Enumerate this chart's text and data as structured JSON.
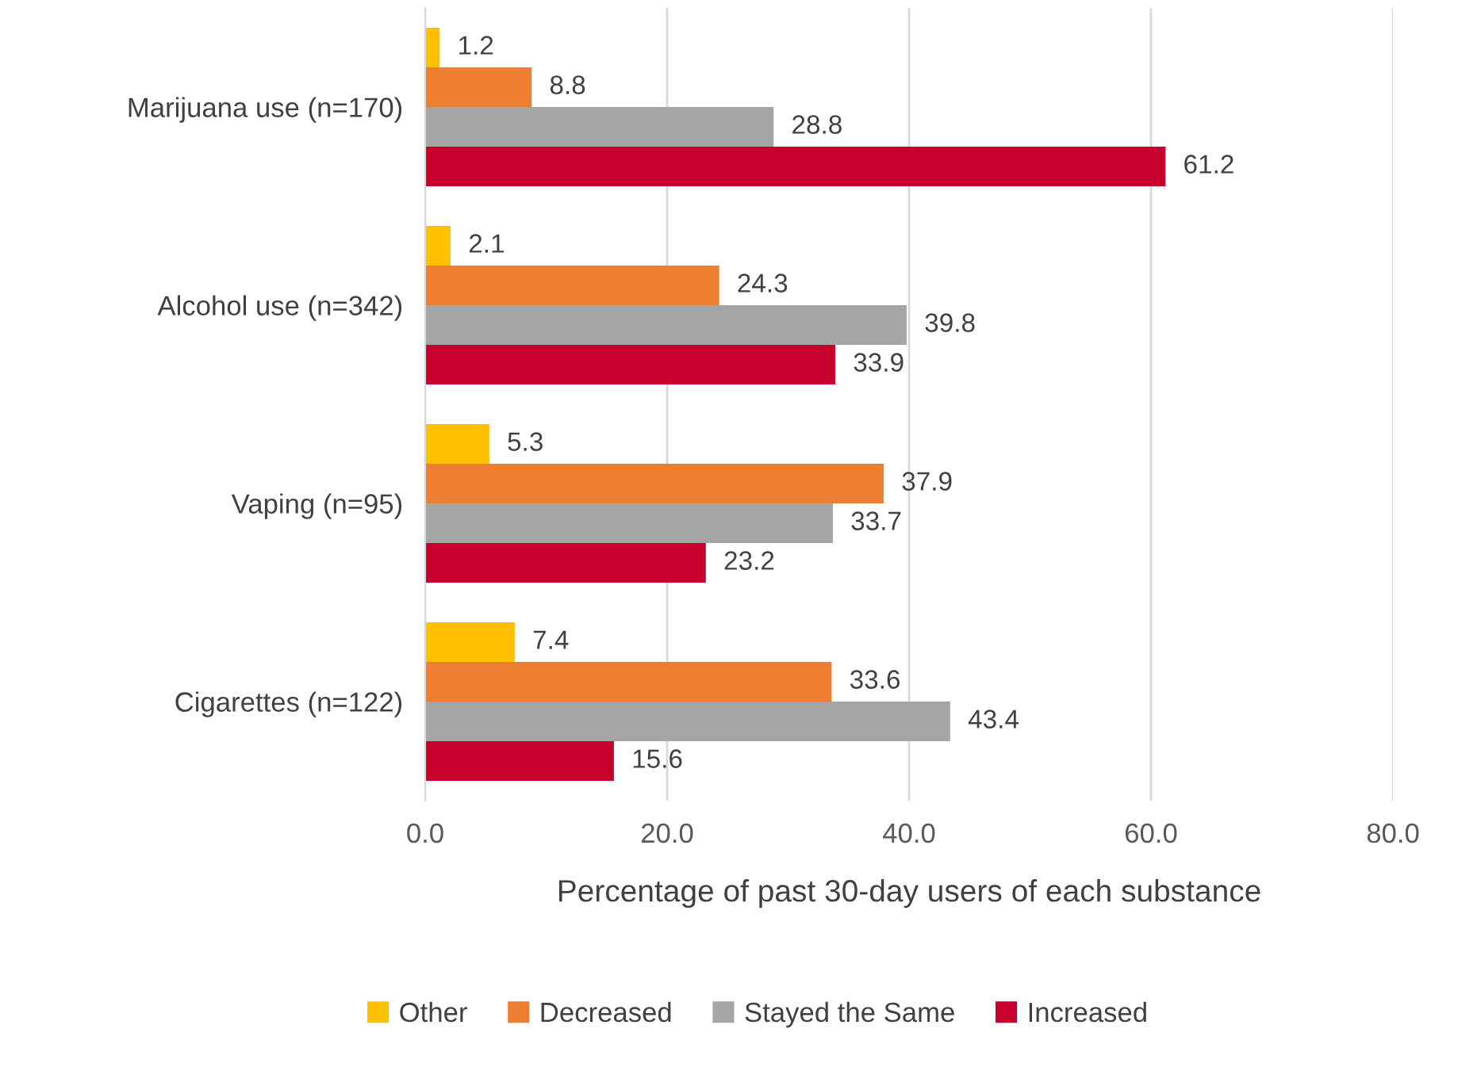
{
  "chart_data": {
    "type": "bar",
    "orientation": "horizontal",
    "xlabel": "Percentage of past 30-day users of each substance",
    "categories": [
      "Marijuana use (n=170)",
      "Alcohol use (n=342)",
      "Vaping (n=95)",
      "Cigarettes (n=122)"
    ],
    "series": [
      {
        "name": "Other",
        "color": "#ffc000",
        "values": [
          1.2,
          2.1,
          5.3,
          7.4
        ]
      },
      {
        "name": "Decreased",
        "color": "#ed7d31",
        "values": [
          8.8,
          24.3,
          37.9,
          33.6
        ]
      },
      {
        "name": "Stayed the Same",
        "color": "#a5a5a5",
        "values": [
          28.8,
          39.8,
          33.7,
          43.4
        ]
      },
      {
        "name": "Increased",
        "color": "#c8002e",
        "values": [
          61.2,
          33.9,
          23.2,
          15.6
        ]
      }
    ],
    "xlim": [
      0,
      80
    ],
    "xticks": [
      {
        "value": 0,
        "label": "0.0"
      },
      {
        "value": 20,
        "label": "20.0"
      },
      {
        "value": 40,
        "label": "40.0"
      },
      {
        "value": 60,
        "label": "60.0"
      },
      {
        "value": 80,
        "label": "80.0"
      }
    ],
    "grid": "x",
    "legend": "bottom",
    "data_labels": true
  }
}
